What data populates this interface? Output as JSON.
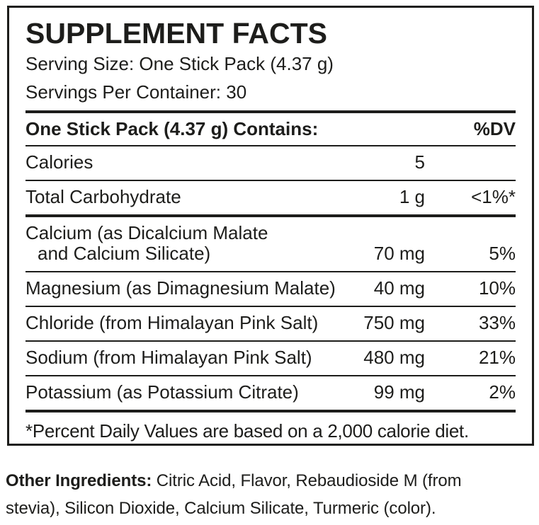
{
  "panel": {
    "title": "SUPPLEMENT FACTS",
    "serving_size": "Serving Size: One Stick Pack (4.37 g)",
    "servings_per_container": "Servings Per Container: 30",
    "contains_header": "One Stick Pack (4.37 g) Contains:",
    "dv_header": "%DV",
    "rows": [
      {
        "name": "Calories",
        "amount": "5",
        "dv": ""
      },
      {
        "name": "Total Carbohydrate",
        "amount": "1 g",
        "dv": "<1%*"
      },
      {
        "name": "Calcium (as Dicalcium Malate",
        "name_line2": "and Calcium Silicate)",
        "amount": "70 mg",
        "dv": "5%"
      },
      {
        "name": "Magnesium (as Dimagnesium Malate)",
        "amount": "40 mg",
        "dv": "10%"
      },
      {
        "name": "Chloride (from Himalayan Pink Salt)",
        "amount": "750 mg",
        "dv": "33%"
      },
      {
        "name": "Sodium (from Himalayan Pink Salt)",
        "amount": "480 mg",
        "dv": "21%"
      },
      {
        "name": "Potassium (as Potassium Citrate)",
        "amount": "99 mg",
        "dv": "2%"
      }
    ],
    "footnote": "*Percent Daily Values are based on a 2,000 calorie diet."
  },
  "other_ingredients": {
    "label": "Other Ingredients:",
    "line1": " Citric Acid, Flavor, Rebaudioside M (from",
    "line2": "stevia), Silicon Dioxide, Calcium Silicate, Turmeric (color)."
  },
  "colors": {
    "text": "#1d1d1b",
    "border": "#1d1d1b",
    "background": "#ffffff"
  }
}
